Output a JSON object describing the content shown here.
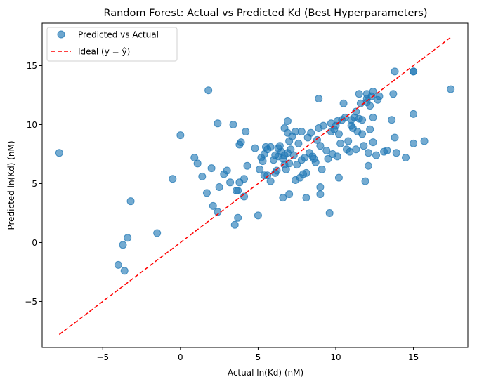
{
  "chart_data": {
    "type": "scatter",
    "title": "Random Forest: Actual vs Predicted Kd (Best Hyperparameters)",
    "xlabel": "Actual ln(Kd) (nM)",
    "ylabel": "Predicted ln(Kd) (nM)",
    "xlim": [
      -8.9,
      18.5
    ],
    "ylim": [
      -8.9,
      18.6
    ],
    "xticks": [
      -5,
      0,
      5,
      10,
      15
    ],
    "yticks": [
      -5,
      0,
      5,
      10,
      15
    ],
    "xtick_labels": [
      "−5",
      "0",
      "5",
      "10",
      "15"
    ],
    "ytick_labels": [
      "−5",
      "0",
      "5",
      "10",
      "15"
    ],
    "grid": false,
    "legend_position": "top-left",
    "series": [
      {
        "name": "Predicted vs Actual",
        "kind": "scatter",
        "color": "#1f77b4",
        "points": [
          [
            -7.8,
            7.6
          ],
          [
            -4.0,
            -1.9
          ],
          [
            -3.7,
            -0.2
          ],
          [
            -3.6,
            -2.4
          ],
          [
            -3.4,
            0.4
          ],
          [
            -3.2,
            3.5
          ],
          [
            -1.5,
            0.8
          ],
          [
            -0.5,
            5.4
          ],
          [
            0.0,
            9.1
          ],
          [
            0.9,
            7.2
          ],
          [
            1.1,
            6.7
          ],
          [
            1.4,
            5.6
          ],
          [
            1.7,
            4.2
          ],
          [
            1.8,
            12.9
          ],
          [
            2.0,
            6.3
          ],
          [
            2.1,
            3.1
          ],
          [
            2.4,
            2.6
          ],
          [
            2.4,
            10.1
          ],
          [
            2.5,
            4.7
          ],
          [
            2.8,
            5.8
          ],
          [
            3.0,
            6.1
          ],
          [
            3.2,
            5.1
          ],
          [
            3.4,
            10.0
          ],
          [
            3.5,
            1.5
          ],
          [
            3.6,
            4.4
          ],
          [
            3.7,
            2.1
          ],
          [
            3.7,
            4.4
          ],
          [
            3.8,
            8.3
          ],
          [
            3.9,
            8.5
          ],
          [
            3.8,
            5.1
          ],
          [
            4.1,
            5.4
          ],
          [
            4.1,
            3.9
          ],
          [
            4.2,
            9.4
          ],
          [
            4.3,
            6.5
          ],
          [
            4.8,
            8.0
          ],
          [
            5.0,
            2.3
          ],
          [
            5.1,
            6.2
          ],
          [
            5.2,
            7.2
          ],
          [
            5.3,
            6.9
          ],
          [
            5.4,
            7.5
          ],
          [
            5.4,
            5.7
          ],
          [
            5.5,
            8.1
          ],
          [
            5.6,
            7.9
          ],
          [
            5.6,
            5.7
          ],
          [
            5.8,
            5.2
          ],
          [
            5.8,
            8.1
          ],
          [
            6.0,
            7.0
          ],
          [
            6.1,
            7.4
          ],
          [
            6.1,
            5.9
          ],
          [
            6.2,
            6.1
          ],
          [
            6.3,
            7.3
          ],
          [
            6.3,
            8.0
          ],
          [
            6.4,
            8.2
          ],
          [
            6.5,
            7.7
          ],
          [
            6.6,
            3.8
          ],
          [
            6.6,
            7.1
          ],
          [
            6.7,
            9.7
          ],
          [
            6.7,
            7.4
          ],
          [
            6.7,
            6.6
          ],
          [
            6.8,
            6.2
          ],
          [
            6.9,
            10.3
          ],
          [
            6.9,
            9.3
          ],
          [
            6.9,
            7.6
          ],
          [
            7.0,
            8.6
          ],
          [
            7.0,
            6.7
          ],
          [
            7.0,
            4.1
          ],
          [
            7.1,
            7.9
          ],
          [
            7.2,
            9.0
          ],
          [
            7.3,
            7.4
          ],
          [
            7.4,
            9.4
          ],
          [
            7.4,
            5.3
          ],
          [
            7.5,
            6.6
          ],
          [
            7.6,
            8.4
          ],
          [
            7.7,
            5.5
          ],
          [
            7.8,
            7.0
          ],
          [
            7.8,
            9.4
          ],
          [
            7.9,
            5.8
          ],
          [
            8.0,
            7.2
          ],
          [
            8.1,
            3.8
          ],
          [
            8.1,
            5.9
          ],
          [
            8.2,
            8.9
          ],
          [
            8.3,
            7.6
          ],
          [
            8.4,
            9.3
          ],
          [
            8.5,
            7.3
          ],
          [
            8.6,
            7.1
          ],
          [
            8.7,
            6.8
          ],
          [
            8.8,
            8.7
          ],
          [
            8.9,
            12.2
          ],
          [
            8.9,
            9.7
          ],
          [
            9.0,
            4.1
          ],
          [
            9.0,
            4.7
          ],
          [
            9.0,
            8.2
          ],
          [
            9.1,
            6.2
          ],
          [
            9.2,
            9.9
          ],
          [
            9.4,
            7.8
          ],
          [
            9.5,
            7.1
          ],
          [
            9.6,
            2.5
          ],
          [
            9.7,
            10.1
          ],
          [
            9.7,
            9.4
          ],
          [
            9.8,
            7.5
          ],
          [
            9.9,
            9.6
          ],
          [
            10.0,
            9.9
          ],
          [
            10.1,
            10.3
          ],
          [
            10.1,
            7.3
          ],
          [
            10.2,
            5.5
          ],
          [
            10.2,
            9.2
          ],
          [
            10.3,
            8.4
          ],
          [
            10.4,
            10.4
          ],
          [
            10.5,
            11.8
          ],
          [
            10.6,
            10.6
          ],
          [
            10.7,
            7.9
          ],
          [
            10.8,
            8.6
          ],
          [
            10.9,
            7.7
          ],
          [
            11.0,
            10.4
          ],
          [
            11.0,
            9.9
          ],
          [
            11.1,
            9.7
          ],
          [
            11.2,
            10.6
          ],
          [
            11.3,
            7.9
          ],
          [
            11.3,
            11.1
          ],
          [
            11.4,
            9.4
          ],
          [
            11.5,
            12.6
          ],
          [
            11.5,
            10.5
          ],
          [
            11.6,
            11.8
          ],
          [
            11.7,
            9.2
          ],
          [
            11.7,
            10.4
          ],
          [
            11.8,
            8.2
          ],
          [
            11.9,
            5.2
          ],
          [
            12.0,
            12.6
          ],
          [
            12.0,
            11.9
          ],
          [
            12.0,
            12.2
          ],
          [
            12.1,
            7.6
          ],
          [
            12.1,
            6.5
          ],
          [
            12.2,
            9.6
          ],
          [
            12.2,
            11.6
          ],
          [
            12.3,
            12.4
          ],
          [
            12.4,
            10.6
          ],
          [
            12.4,
            12.8
          ],
          [
            12.4,
            8.5
          ],
          [
            12.6,
            7.4
          ],
          [
            12.7,
            12.1
          ],
          [
            12.8,
            12.4
          ],
          [
            13.1,
            7.7
          ],
          [
            13.3,
            7.8
          ],
          [
            13.6,
            10.4
          ],
          [
            13.7,
            12.6
          ],
          [
            13.8,
            14.5
          ],
          [
            13.8,
            8.9
          ],
          [
            13.9,
            7.6
          ],
          [
            14.5,
            7.2
          ],
          [
            15.0,
            14.5
          ],
          [
            15.0,
            14.5
          ],
          [
            15.0,
            10.9
          ],
          [
            15.0,
            8.4
          ],
          [
            15.7,
            8.6
          ],
          [
            17.4,
            13.0
          ]
        ]
      },
      {
        "name": "Ideal (y = ŷ)",
        "kind": "line",
        "style": "dashed",
        "color": "#ff0000",
        "x": [
          -7.8,
          17.4
        ],
        "y": [
          -7.8,
          17.4
        ]
      }
    ]
  }
}
